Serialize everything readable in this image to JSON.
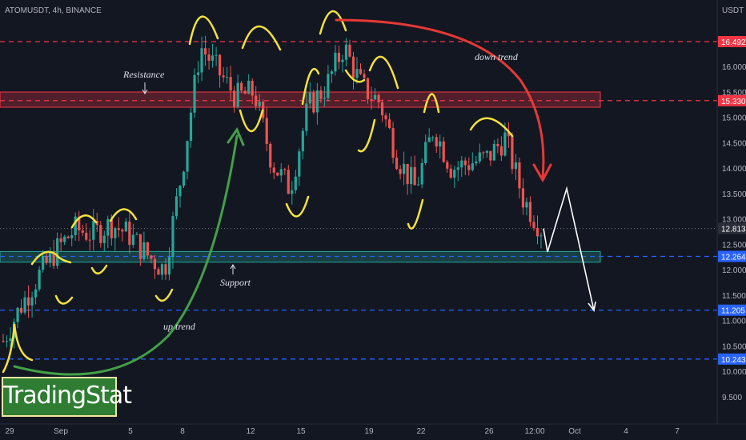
{
  "chart_data": {
    "type": "candlestick",
    "title": "ATOMUSDT, 4h, BINANCE",
    "currency": "USDT",
    "ylim": [
      9.2,
      17.0
    ],
    "y_ticks": [
      9.5,
      10.0,
      10.5,
      11.0,
      11.5,
      12.0,
      12.5,
      13.0,
      13.5,
      14.0,
      14.5,
      15.0,
      15.5,
      16.0,
      16.5
    ],
    "y_tick_labels": [
      "9.500",
      "10.000",
      "10.500",
      "11.000",
      "11.500",
      "12.000",
      "12.500",
      "13.000",
      "13.500",
      "14.000",
      "14.500",
      "15.000",
      "15.500",
      "16.000",
      "16.500"
    ],
    "x_ticks": [
      "29",
      "Sep",
      "5",
      "8",
      "12",
      "15",
      "19",
      "22",
      "26",
      "12:00",
      "Oct",
      "4",
      "7"
    ],
    "candles_close_path": [
      {
        "t": "Aug 29",
        "v": 10.6
      },
      {
        "t": "Aug 30",
        "v": 11.3
      },
      {
        "t": "Aug 31",
        "v": 11.9
      },
      {
        "t": "Sep 1",
        "v": 12.4
      },
      {
        "t": "Sep 2",
        "v": 12.8
      },
      {
        "t": "Sep 3",
        "v": 12.7
      },
      {
        "t": "Sep 4",
        "v": 12.9
      },
      {
        "t": "Sep 5",
        "v": 12.7
      },
      {
        "t": "Sep 6",
        "v": 12.3
      },
      {
        "t": "Sep 7",
        "v": 12.0
      },
      {
        "t": "Sep 8",
        "v": 14.0
      },
      {
        "t": "Sep 9",
        "v": 16.4
      },
      {
        "t": "Sep 10",
        "v": 15.9
      },
      {
        "t": "Sep 11",
        "v": 15.4
      },
      {
        "t": "Sep 12",
        "v": 15.5
      },
      {
        "t": "Sep 13",
        "v": 14.1
      },
      {
        "t": "Sep 14",
        "v": 13.6
      },
      {
        "t": "Sep 15",
        "v": 15.2
      },
      {
        "t": "Sep 16",
        "v": 15.6
      },
      {
        "t": "Sep 17",
        "v": 16.4
      },
      {
        "t": "Sep 18",
        "v": 15.6
      },
      {
        "t": "Sep 19",
        "v": 15.3
      },
      {
        "t": "Sep 20",
        "v": 14.2
      },
      {
        "t": "Sep 21",
        "v": 13.6
      },
      {
        "t": "Sep 22",
        "v": 14.8
      },
      {
        "t": "Sep 23",
        "v": 14.0
      },
      {
        "t": "Sep 24",
        "v": 14.1
      },
      {
        "t": "Sep 25",
        "v": 14.2
      },
      {
        "t": "Sep 26",
        "v": 14.6
      },
      {
        "t": "Sep 27",
        "v": 13.4
      },
      {
        "t": "Sep 28",
        "v": 12.813
      }
    ],
    "price_levels": [
      {
        "label": "16.492",
        "value": 16.492,
        "color": "#f23645",
        "style": "dashed"
      },
      {
        "label": "15.330",
        "value": 15.33,
        "color": "#f23645",
        "style": "dashed"
      },
      {
        "label": "12.813",
        "value": 12.813,
        "color": "#787b86",
        "style": "dotted",
        "current": true
      },
      {
        "label": "12.264",
        "value": 12.264,
        "color": "#2962ff",
        "style": "dashed"
      },
      {
        "label": "11.205",
        "value": 11.205,
        "color": "#2962ff",
        "style": "dashed"
      },
      {
        "label": "10.243",
        "value": 10.243,
        "color": "#2962ff",
        "style": "dashed"
      }
    ],
    "zones": [
      {
        "name": "Resistance",
        "from": 15.2,
        "to": 15.5,
        "color": "#f23645"
      },
      {
        "name": "Support",
        "from": 12.15,
        "to": 12.36,
        "color": "#26a69a"
      }
    ],
    "annotations": [
      "Resistance",
      "Support",
      "up trend",
      "down trend"
    ],
    "projection": [
      12.813,
      12.35,
      13.6,
      11.2
    ],
    "grid": false
  },
  "watermark": "TradingStat",
  "colors": {
    "up": "#26a69a",
    "down": "#ef5350",
    "background": "#131722",
    "highlight": "#f5e33b",
    "up_trend": "#43a047",
    "down_trend": "#e53935"
  }
}
